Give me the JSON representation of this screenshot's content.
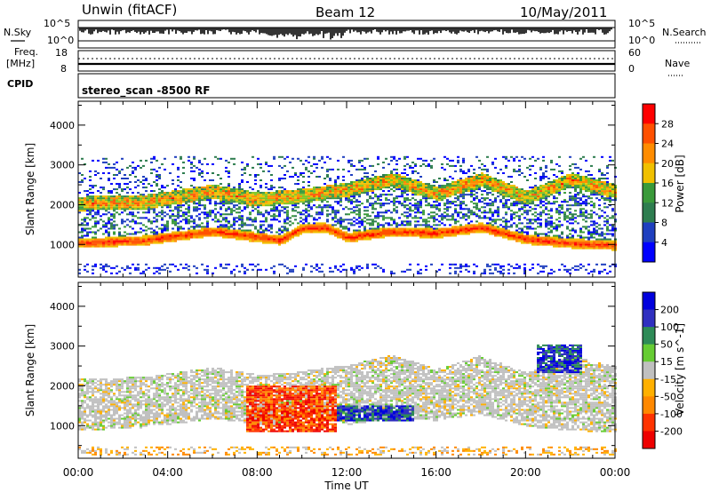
{
  "header": {
    "station": "Unwin  (fitACF)",
    "beam": "Beam 12",
    "date": "10/May/2011"
  },
  "top_panels": {
    "nsky_label": "N.Sky",
    "nsearch_label": "N.Search",
    "noise_ticks": [
      "10^5",
      "10^0"
    ],
    "freq_label": "Freq.",
    "freq_unit": "[MHz]",
    "freq_ticks": [
      "18",
      "8"
    ],
    "nave_label": "Nave",
    "nave_ticks": [
      "60",
      "0"
    ],
    "cpid_label": "CPID",
    "cpid_value": "stereo_scan  -8500  RF"
  },
  "colors": {
    "power": [
      "#0000ff",
      "#1f3fbf",
      "#2e7d4f",
      "#3a9a3a",
      "#7fc41f",
      "#f0c000",
      "#ff8c00",
      "#ff5000",
      "#ff0000"
    ],
    "velocity": [
      "#ee0000",
      "#ff3300",
      "#ff8800",
      "#ffb000",
      "#c0c0c0",
      "#66cc33",
      "#2e8b57",
      "#3030c0",
      "#0000dd"
    ]
  },
  "chart_data": [
    {
      "type": "heatmap",
      "panel": "power",
      "ylabel": "Slant Range [km]",
      "xlabel": "Time UT",
      "x_ticks": [
        "00:00",
        "04:00",
        "08:00",
        "12:00",
        "16:00",
        "20:00",
        "00:00"
      ],
      "x_range_hours": [
        0,
        24
      ],
      "y_ticks": [
        1000,
        2000,
        3000,
        4000
      ],
      "ylim": [
        180,
        4600
      ],
      "colorbar": {
        "label": "Power [dB]",
        "ticks": [
          4,
          8,
          12,
          16,
          20,
          24,
          28
        ],
        "range": [
          0,
          32
        ]
      },
      "echo_bands": [
        {
          "name": "lower strong band",
          "points": [
            [
              0,
              1000
            ],
            [
              3,
              1080
            ],
            [
              6,
              1300
            ],
            [
              8,
              1150
            ],
            [
              9,
              1080
            ],
            [
              10,
              1380
            ],
            [
              11,
              1400
            ],
            [
              12,
              1150
            ],
            [
              14,
              1300
            ],
            [
              16,
              1250
            ],
            [
              18,
              1400
            ],
            [
              20,
              1100
            ],
            [
              22,
              1000
            ],
            [
              24,
              950
            ]
          ]
        },
        {
          "name": "upper band",
          "points": [
            [
              0,
              2000
            ],
            [
              3,
              2050
            ],
            [
              6,
              2300
            ],
            [
              8,
              2100
            ],
            [
              10,
              2200
            ],
            [
              12,
              2350
            ],
            [
              14,
              2600
            ],
            [
              16,
              2250
            ],
            [
              18,
              2600
            ],
            [
              20,
              2150
            ],
            [
              22,
              2600
            ],
            [
              24,
              2300
            ]
          ]
        }
      ]
    },
    {
      "type": "heatmap",
      "panel": "velocity",
      "ylabel": "Slant Range [km]",
      "xlabel": "Time UT",
      "x_ticks": [
        "00:00",
        "04:00",
        "08:00",
        "12:00",
        "16:00",
        "20:00",
        "00:00"
      ],
      "x_range_hours": [
        0,
        24
      ],
      "y_ticks": [
        1000,
        2000,
        3000,
        4000
      ],
      "ylim": [
        180,
        4600
      ],
      "colorbar": {
        "label": "Velocity [m s^-1]",
        "ticks": [
          "200",
          "100",
          "50",
          "15",
          "-15",
          "-50",
          "-100",
          "-200"
        ]
      },
      "features": [
        {
          "name": "negative velocity region",
          "time_range": [
            7.5,
            11.5
          ],
          "range_km": [
            800,
            2000
          ],
          "velocity": -200
        },
        {
          "name": "positive velocity streak",
          "time_range": [
            11.5,
            15
          ],
          "range_km": [
            1100,
            1500
          ],
          "velocity": 200
        },
        {
          "name": "upper positive arc",
          "time_range": [
            20.5,
            22.5
          ],
          "range_km": [
            2300,
            3000
          ],
          "velocity": 200
        }
      ]
    }
  ],
  "axis_label_time": "Time UT"
}
